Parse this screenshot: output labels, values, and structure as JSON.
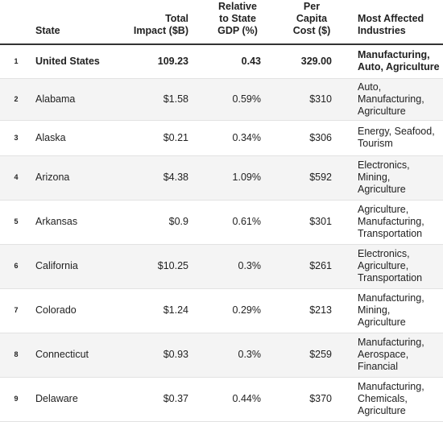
{
  "table": {
    "headers": {
      "state": "State",
      "impact": "Total Impact ($B)",
      "gdp": "Relative to State GDP (%)",
      "capita": "Per Capita Cost ($)",
      "industries": "Most Affected Industries"
    },
    "rows": [
      {
        "num": "1",
        "state": "United States",
        "impact": "109.23",
        "gdp": "0.43",
        "capita": "329.00",
        "industries": "Manufacturing, Auto, Agriculture"
      },
      {
        "num": "2",
        "state": "Alabama",
        "impact": "$1.58",
        "gdp": "0.59%",
        "capita": "$310",
        "industries": "Auto, Manufacturing, Agriculture"
      },
      {
        "num": "3",
        "state": "Alaska",
        "impact": "$0.21",
        "gdp": "0.34%",
        "capita": "$306",
        "industries": "Energy, Seafood, Tourism"
      },
      {
        "num": "4",
        "state": "Arizona",
        "impact": "$4.38",
        "gdp": "1.09%",
        "capita": "$592",
        "industries": "Electronics, Mining, Agriculture"
      },
      {
        "num": "5",
        "state": "Arkansas",
        "impact": "$0.9",
        "gdp": "0.61%",
        "capita": "$301",
        "industries": "Agriculture, Manufacturing, Transportation"
      },
      {
        "num": "6",
        "state": "California",
        "impact": "$10.25",
        "gdp": "0.3%",
        "capita": "$261",
        "industries": "Electronics, Agriculture, Transportation"
      },
      {
        "num": "7",
        "state": "Colorado",
        "impact": "$1.24",
        "gdp": "0.29%",
        "capita": "$213",
        "industries": "Manufacturing, Mining, Agriculture"
      },
      {
        "num": "8",
        "state": "Connecticut",
        "impact": "$0.93",
        "gdp": "0.3%",
        "capita": "$259",
        "industries": "Manufacturing, Aerospace, Financial"
      },
      {
        "num": "9",
        "state": "Delaware",
        "impact": "$0.37",
        "gdp": "0.44%",
        "capita": "$370",
        "industries": "Manufacturing, Chemicals, Agriculture"
      }
    ]
  }
}
